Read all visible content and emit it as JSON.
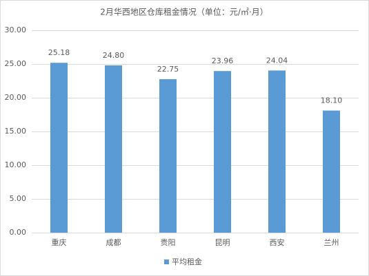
{
  "chart_data": {
    "type": "bar",
    "title": "2月华西地区仓库租金情况（单位：元/㎡·月）",
    "categories": [
      "重庆",
      "成都",
      "贵阳",
      "昆明",
      "西安",
      "兰州"
    ],
    "series": [
      {
        "name": "平均租金",
        "color": "#5b9bd5",
        "values": [
          25.18,
          24.8,
          22.75,
          23.96,
          24.04,
          18.1
        ],
        "value_labels": [
          "25.18",
          "24.80",
          "22.75",
          "23.96",
          "24.04",
          "18.10"
        ]
      }
    ],
    "ylim": [
      0,
      30
    ],
    "yticks": [
      {
        "value": 0,
        "label": "0.00"
      },
      {
        "value": 5,
        "label": "5.00"
      },
      {
        "value": 10,
        "label": "10.00"
      },
      {
        "value": 15,
        "label": "15.00"
      },
      {
        "value": 20,
        "label": "20.00"
      },
      {
        "value": 25,
        "label": "25.00"
      },
      {
        "value": 30,
        "label": "30.00"
      }
    ],
    "grid": true,
    "legend": "bottom"
  }
}
